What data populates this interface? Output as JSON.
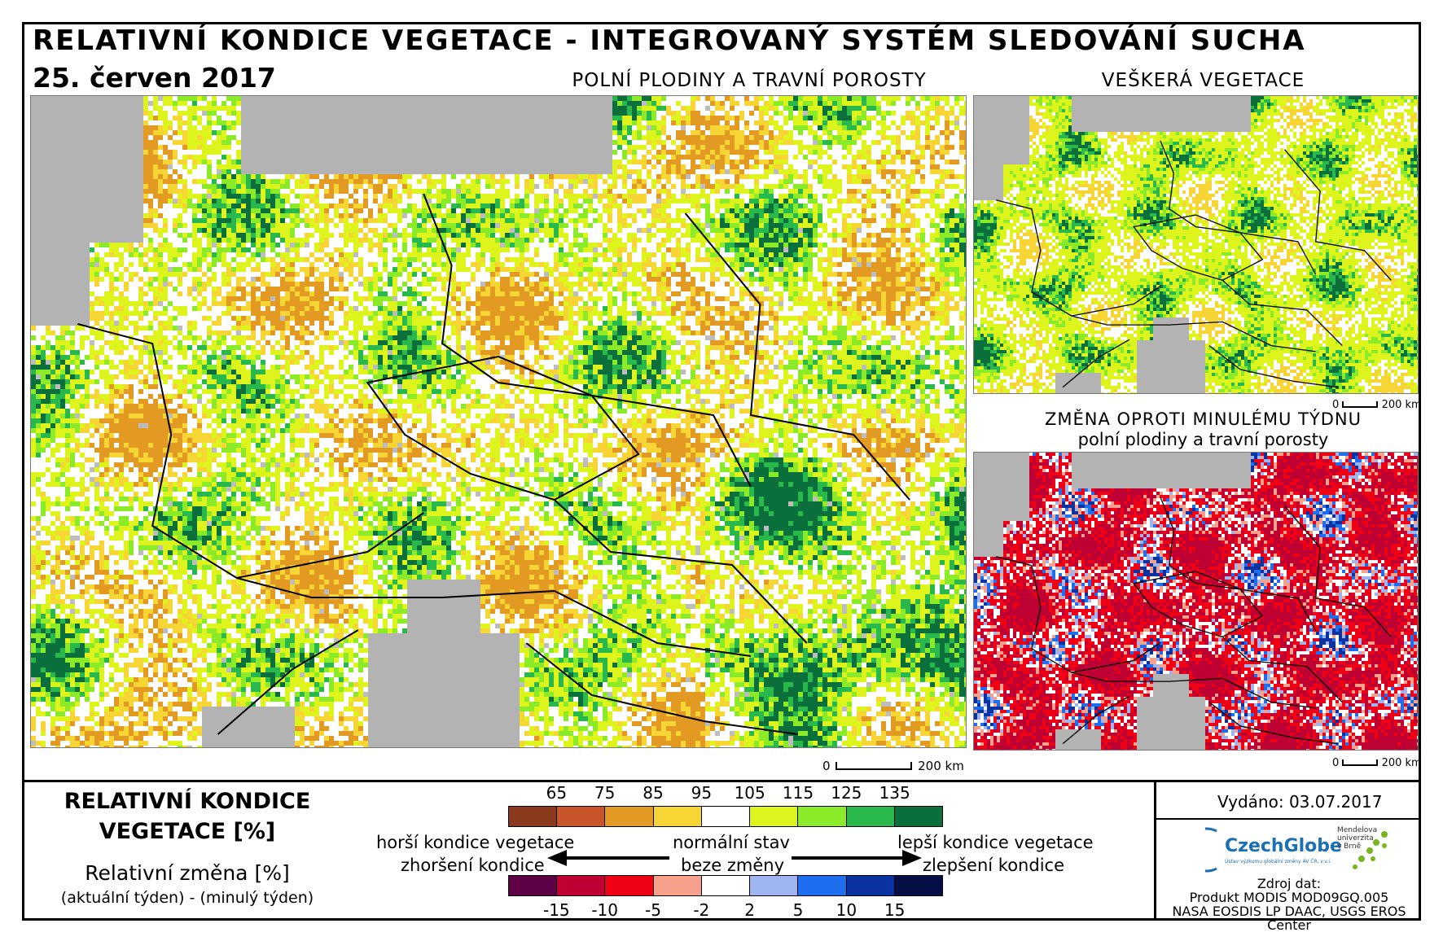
{
  "header": {
    "title": "RELATIVNÍ KONDICE VEGETACE - INTEGROVANÝ SYSTÉM SLEDOVÁNÍ SUCHA",
    "date": "25. červen 2017"
  },
  "maps": {
    "main_label": "POLNÍ PLODINY A TRAVNÍ POROSTY",
    "all_veg_label": "VEŠKERÁ VEGETACE",
    "change_label_1": "ZMĚNA OPROTI MINULÉMU TÝDNU",
    "change_label_2": "polní plodiny a travní porosty",
    "scale_zero": "0",
    "scale_main": "200 km",
    "scale_small": "200 km"
  },
  "legend": {
    "title_1": "RELATIVNÍ KONDICE",
    "title_2": "VEGETACE [%]",
    "change_title": "Relativní změna [%]",
    "change_formula": "(aktuální týden) - (minulý týden)",
    "condition_ticks": [
      "65",
      "75",
      "85",
      "95",
      "105",
      "115",
      "125",
      "135"
    ],
    "condition_colors": [
      "#8B3A1E",
      "#C8562A",
      "#E39A22",
      "#F7D535",
      "#FFFFFF",
      "#DDF51C",
      "#8CEB28",
      "#28B84C",
      "#0B6F3C"
    ],
    "change_ticks": [
      "-15",
      "-10",
      "-5",
      "-2",
      "2",
      "5",
      "10",
      "15"
    ],
    "change_colors": [
      "#5E0046",
      "#BE0032",
      "#F00014",
      "#F7A08C",
      "#FFFFFF",
      "#A0B4F0",
      "#1E6EF0",
      "#0A32A0",
      "#050F46"
    ],
    "worse_1": "horší kondice vegetace",
    "worse_2": "zhoršení kondice",
    "normal_1": "normální stav",
    "normal_2": "beze změny",
    "better_1": "lepší kondice vegetace",
    "better_2": "zlepšení kondice"
  },
  "info": {
    "issued": "Vydáno: 03.07.2017",
    "logo_czechglobe": "CzechGlobe",
    "logo_czechglobe_sub": "Ústav výzkumu globální změny AV ČR, v.v.i.",
    "logo_mendel": "Mendelova univerzita v Brně",
    "source_1": "Zdroj dat:",
    "source_2": "Produkt MODIS MOD09GQ.005",
    "source_3": "NASA EOSDIS LP DAAC, USGS EROS Center"
  }
}
